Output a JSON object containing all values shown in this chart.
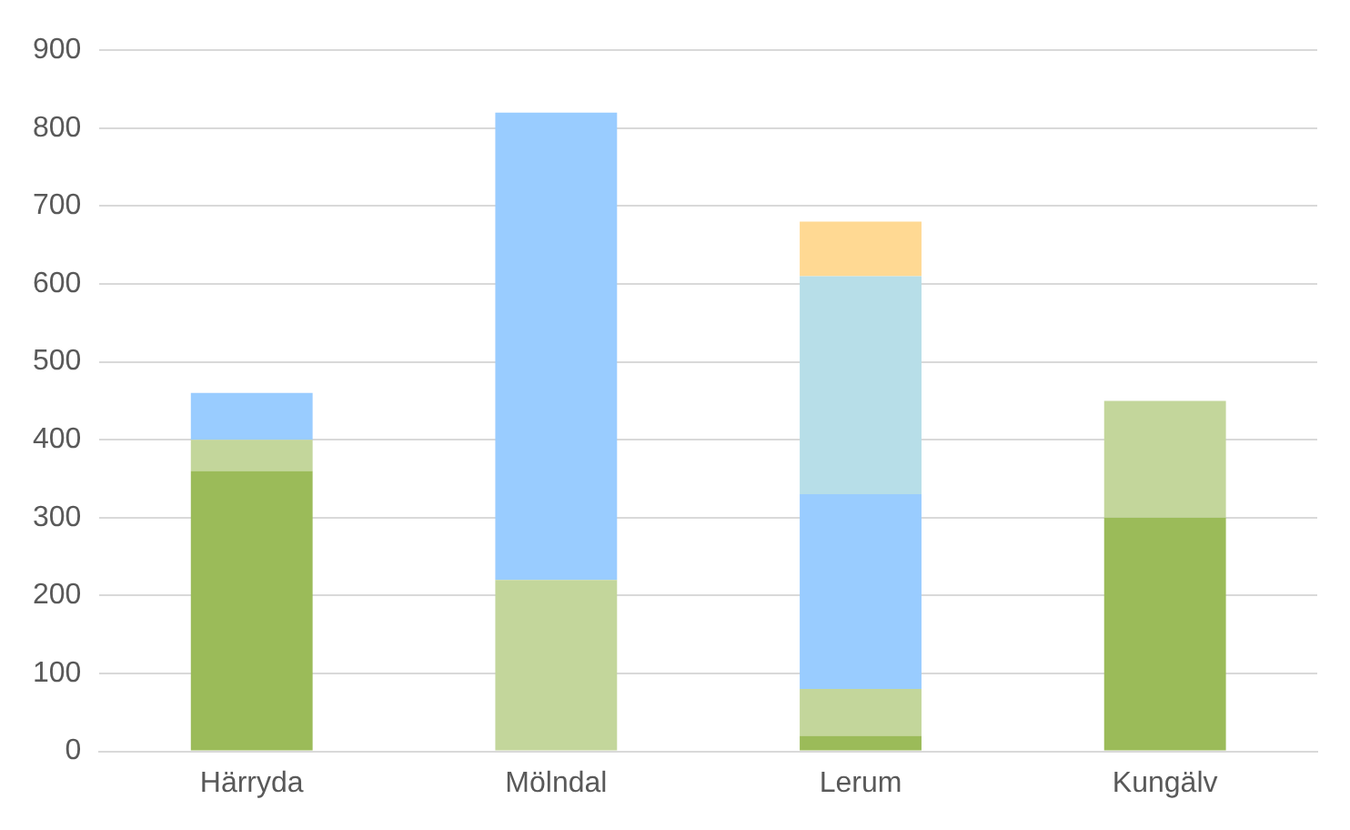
{
  "chart_data": {
    "type": "bar",
    "stacked": true,
    "categories": [
      "Härryda",
      "Mölndal",
      "Lerum",
      "Kungälv"
    ],
    "series": [
      {
        "color": "#9bbb59",
        "values": [
          360,
          null,
          20,
          300
        ]
      },
      {
        "color": "#c3d69b",
        "values": [
          40,
          220,
          60,
          150
        ]
      },
      {
        "color": "#99ccff",
        "values": [
          60,
          600,
          250,
          null
        ]
      },
      {
        "color": "#b7dee8",
        "values": [
          null,
          null,
          280,
          null
        ]
      },
      {
        "color": "#ffd993",
        "values": [
          null,
          null,
          70,
          null
        ]
      }
    ],
    "ylim": [
      0,
      900
    ],
    "yticks": [
      0,
      100,
      200,
      300,
      400,
      500,
      600,
      700,
      800,
      900
    ],
    "grid": "y",
    "legend": false
  }
}
